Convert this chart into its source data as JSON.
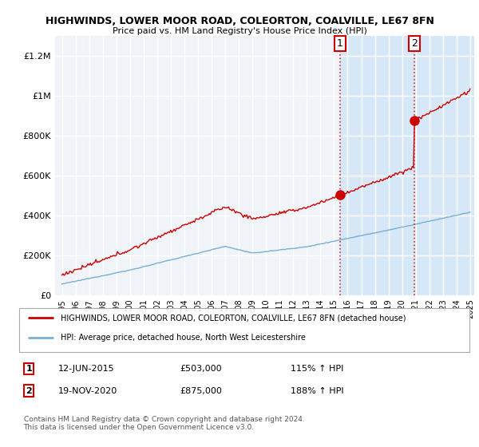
{
  "title": "HIGHWINDS, LOWER MOOR ROAD, COLEORTON, COALVILLE, LE67 8FN",
  "subtitle": "Price paid vs. HM Land Registry's House Price Index (HPI)",
  "legend_line1": "HIGHWINDS, LOWER MOOR ROAD, COLEORTON, COALVILLE, LE67 8FN (detached house)",
  "legend_line2": "HPI: Average price, detached house, North West Leicestershire",
  "sale1_date": "12-JUN-2015",
  "sale1_price": 503000,
  "sale1_label": "1",
  "sale1_pct": "115% ↑ HPI",
  "sale2_date": "19-NOV-2020",
  "sale2_price": 875000,
  "sale2_label": "2",
  "sale2_pct": "188% ↑ HPI",
  "footer": "Contains HM Land Registry data © Crown copyright and database right 2024.\nThis data is licensed under the Open Government Licence v3.0.",
  "ylim": [
    0,
    1300000
  ],
  "yticks": [
    0,
    200000,
    400000,
    600000,
    800000,
    1000000,
    1200000
  ],
  "ytick_labels": [
    "£0",
    "£200K",
    "£400K",
    "£600K",
    "£800K",
    "£1M",
    "£1.2M"
  ],
  "bg_color": "#ffffff",
  "plot_bg_color": "#f0f4f8",
  "grid_color": "#ffffff",
  "red_color": "#cc0000",
  "blue_color": "#7bafd4",
  "shade_color": "#d6e8f7",
  "sale1_x": 2015.44,
  "sale2_x": 2020.89,
  "xmin": 1995,
  "xmax": 2025
}
